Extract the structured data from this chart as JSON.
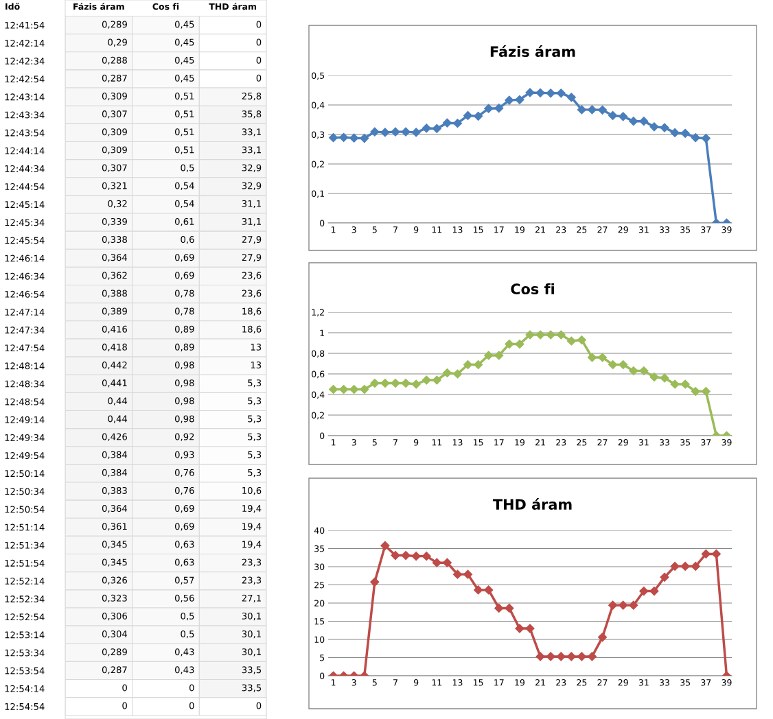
{
  "chart_data": [
    {
      "type": "heatmap",
      "ylabel": "Idő",
      "categories": [
        "Fázis áram",
        "Cos fi",
        "THD áram"
      ],
      "y_categories": [
        "12:41:54",
        "12:42:14",
        "12:42:34",
        "12:42:54",
        "12:43:14",
        "12:43:34",
        "12:43:54",
        "12:44:14",
        "12:44:34",
        "12:44:54",
        "12:45:14",
        "12:45:34",
        "12:45:54",
        "12:46:14",
        "12:46:34",
        "12:46:54",
        "12:47:14",
        "12:47:34",
        "12:47:54",
        "12:48:14",
        "12:48:34",
        "12:48:54",
        "12:49:14",
        "12:49:34",
        "12:49:54",
        "12:50:14",
        "12:50:34",
        "12:50:54",
        "12:51:14",
        "12:51:34",
        "12:51:54",
        "12:52:14",
        "12:52:34",
        "12:52:54",
        "12:53:14",
        "12:53:34",
        "12:53:54",
        "12:54:14",
        "12:54:54"
      ],
      "cells": [
        [
          0.289,
          0.45,
          0
        ],
        [
          0.29,
          0.45,
          0
        ],
        [
          0.288,
          0.45,
          0
        ],
        [
          0.287,
          0.45,
          0
        ],
        [
          0.309,
          0.51,
          25.8
        ],
        [
          0.307,
          0.51,
          35.8
        ],
        [
          0.309,
          0.51,
          33.1
        ],
        [
          0.309,
          0.51,
          33.1
        ],
        [
          0.307,
          0.5,
          32.9
        ],
        [
          0.321,
          0.54,
          32.9
        ],
        [
          0.32,
          0.54,
          31.1
        ],
        [
          0.339,
          0.61,
          31.1
        ],
        [
          0.338,
          0.6,
          27.9
        ],
        [
          0.364,
          0.69,
          27.9
        ],
        [
          0.362,
          0.69,
          23.6
        ],
        [
          0.388,
          0.78,
          23.6
        ],
        [
          0.389,
          0.78,
          18.6
        ],
        [
          0.416,
          0.89,
          18.6
        ],
        [
          0.418,
          0.89,
          13
        ],
        [
          0.442,
          0.98,
          13
        ],
        [
          0.441,
          0.98,
          5.3
        ],
        [
          0.44,
          0.98,
          5.3
        ],
        [
          0.44,
          0.98,
          5.3
        ],
        [
          0.426,
          0.92,
          5.3
        ],
        [
          0.384,
          0.93,
          5.3
        ],
        [
          0.384,
          0.76,
          5.3
        ],
        [
          0.383,
          0.76,
          10.6
        ],
        [
          0.364,
          0.69,
          19.4
        ],
        [
          0.361,
          0.69,
          19.4
        ],
        [
          0.345,
          0.63,
          19.4
        ],
        [
          0.345,
          0.63,
          23.3
        ],
        [
          0.326,
          0.57,
          23.3
        ],
        [
          0.323,
          0.56,
          27.1
        ],
        [
          0.306,
          0.5,
          30.1
        ],
        [
          0.304,
          0.5,
          30.1
        ],
        [
          0.289,
          0.43,
          30.1
        ],
        [
          0.287,
          0.43,
          33.5
        ],
        [
          0,
          0,
          33.5
        ],
        [
          0,
          0,
          0
        ]
      ],
      "cell_labels": [
        [
          "0,289",
          "0,45",
          "0"
        ],
        [
          "0,29",
          "0,45",
          "0"
        ],
        [
          "0,288",
          "0,45",
          "0"
        ],
        [
          "0,287",
          "0,45",
          "0"
        ],
        [
          "0,309",
          "0,51",
          "25,8"
        ],
        [
          "0,307",
          "0,51",
          "35,8"
        ],
        [
          "0,309",
          "0,51",
          "33,1"
        ],
        [
          "0,309",
          "0,51",
          "33,1"
        ],
        [
          "0,307",
          "0,5",
          "32,9"
        ],
        [
          "0,321",
          "0,54",
          "32,9"
        ],
        [
          "0,32",
          "0,54",
          "31,1"
        ],
        [
          "0,339",
          "0,61",
          "31,1"
        ],
        [
          "0,338",
          "0,6",
          "27,9"
        ],
        [
          "0,364",
          "0,69",
          "27,9"
        ],
        [
          "0,362",
          "0,69",
          "23,6"
        ],
        [
          "0,388",
          "0,78",
          "23,6"
        ],
        [
          "0,389",
          "0,78",
          "18,6"
        ],
        [
          "0,416",
          "0,89",
          "18,6"
        ],
        [
          "0,418",
          "0,89",
          "13"
        ],
        [
          "0,442",
          "0,98",
          "13"
        ],
        [
          "0,441",
          "0,98",
          "5,3"
        ],
        [
          "0,44",
          "0,98",
          "5,3"
        ],
        [
          "0,44",
          "0,98",
          "5,3"
        ],
        [
          "0,426",
          "0,92",
          "5,3"
        ],
        [
          "0,384",
          "0,93",
          "5,3"
        ],
        [
          "0,384",
          "0,76",
          "5,3"
        ],
        [
          "0,383",
          "0,76",
          "10,6"
        ],
        [
          "0,364",
          "0,69",
          "19,4"
        ],
        [
          "0,361",
          "0,69",
          "19,4"
        ],
        [
          "0,345",
          "0,63",
          "19,4"
        ],
        [
          "0,345",
          "0,63",
          "23,3"
        ],
        [
          "0,326",
          "0,57",
          "23,3"
        ],
        [
          "0,323",
          "0,56",
          "27,1"
        ],
        [
          "0,306",
          "0,5",
          "30,1"
        ],
        [
          "0,304",
          "0,5",
          "30,1"
        ],
        [
          "0,289",
          "0,43",
          "30,1"
        ],
        [
          "0,287",
          "0,43",
          "33,5"
        ],
        [
          "0",
          "0",
          "33,5"
        ],
        [
          "0",
          "0",
          "0"
        ]
      ]
    },
    {
      "type": "line",
      "title": "Fázis áram",
      "color": "#4a7ebb",
      "marker": "diamond",
      "grid": "y",
      "categories": [
        "1",
        null,
        "3",
        null,
        "5",
        null,
        "7",
        null,
        "9",
        null,
        "11",
        null,
        "13",
        null,
        "15",
        null,
        "17",
        null,
        "19",
        null,
        "21",
        null,
        "23",
        null,
        "25",
        null,
        "27",
        null,
        "29",
        null,
        "31",
        null,
        "33",
        null,
        "35",
        null,
        "37",
        null,
        "39"
      ],
      "values": [
        0.289,
        0.29,
        0.288,
        0.287,
        0.309,
        0.307,
        0.309,
        0.309,
        0.307,
        0.321,
        0.32,
        0.339,
        0.338,
        0.364,
        0.362,
        0.388,
        0.389,
        0.416,
        0.418,
        0.442,
        0.441,
        0.44,
        0.44,
        0.426,
        0.384,
        0.384,
        0.383,
        0.364,
        0.361,
        0.345,
        0.345,
        0.326,
        0.323,
        0.306,
        0.304,
        0.289,
        0.287,
        0,
        0
      ],
      "ylim": [
        0,
        0.5
      ],
      "yticks": [
        {
          "value": 0,
          "label": "0"
        },
        {
          "value": 0.1,
          "label": "0,1"
        },
        {
          "value": 0.2,
          "label": "0,2"
        },
        {
          "value": 0.3,
          "label": "0,3"
        },
        {
          "value": 0.4,
          "label": "0,4"
        },
        {
          "value": 0.5,
          "label": "0,5"
        }
      ]
    },
    {
      "type": "line",
      "title": "Cos fi",
      "color": "#9bbb59",
      "marker": "diamond",
      "grid": "y",
      "categories": [
        "1",
        null,
        "3",
        null,
        "5",
        null,
        "7",
        null,
        "9",
        null,
        "11",
        null,
        "13",
        null,
        "15",
        null,
        "17",
        null,
        "19",
        null,
        "21",
        null,
        "23",
        null,
        "25",
        null,
        "27",
        null,
        "29",
        null,
        "31",
        null,
        "33",
        null,
        "35",
        null,
        "37",
        null,
        "39"
      ],
      "values": [
        0.45,
        0.45,
        0.45,
        0.45,
        0.51,
        0.51,
        0.51,
        0.51,
        0.5,
        0.54,
        0.54,
        0.61,
        0.6,
        0.69,
        0.69,
        0.78,
        0.78,
        0.89,
        0.89,
        0.98,
        0.98,
        0.98,
        0.98,
        0.92,
        0.93,
        0.76,
        0.76,
        0.69,
        0.69,
        0.63,
        0.63,
        0.57,
        0.56,
        0.5,
        0.5,
        0.43,
        0.43,
        0,
        0
      ],
      "ylim": [
        0,
        1.2
      ],
      "yticks": [
        {
          "value": 0,
          "label": "0"
        },
        {
          "value": 0.2,
          "label": "0,2"
        },
        {
          "value": 0.4,
          "label": "0,4"
        },
        {
          "value": 0.6,
          "label": "0,6"
        },
        {
          "value": 0.8,
          "label": "0,8"
        },
        1,
        {
          "value": 1.2,
          "label": "1,2"
        }
      ]
    },
    {
      "type": "line",
      "title": "THD áram",
      "color": "#be4b48",
      "marker": "diamond",
      "grid": "y",
      "categories": [
        "1",
        null,
        "3",
        null,
        "5",
        null,
        "7",
        null,
        "9",
        null,
        "11",
        null,
        "13",
        null,
        "15",
        null,
        "17",
        null,
        "19",
        null,
        "21",
        null,
        "23",
        null,
        "25",
        null,
        "27",
        null,
        "29",
        null,
        "31",
        null,
        "33",
        null,
        "35",
        null,
        "37",
        null,
        "39"
      ],
      "values": [
        0,
        0,
        0,
        0,
        25.8,
        35.8,
        33.1,
        33.1,
        32.9,
        32.9,
        31.1,
        31.1,
        27.9,
        27.9,
        23.6,
        23.6,
        18.6,
        18.6,
        13,
        13,
        5.3,
        5.3,
        5.3,
        5.3,
        5.3,
        5.3,
        10.6,
        19.4,
        19.4,
        19.4,
        23.3,
        23.3,
        27.1,
        30.1,
        30.1,
        30.1,
        33.5,
        33.5,
        0
      ],
      "ylim": [
        0,
        40
      ],
      "yticks": [
        0,
        5,
        10,
        15,
        20,
        25,
        30,
        35,
        40
      ]
    }
  ]
}
